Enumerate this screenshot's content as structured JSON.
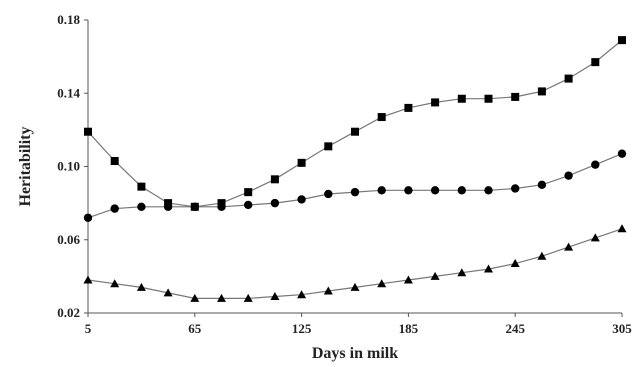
{
  "chart_data": {
    "type": "line",
    "xlabel": "Days in milk",
    "ylabel": "Heritability",
    "xlim": [
      5,
      305
    ],
    "ylim": [
      0.02,
      0.18
    ],
    "x_ticks": [
      5,
      65,
      125,
      185,
      245,
      305
    ],
    "x_tick_labels": [
      "5",
      "65",
      "125",
      "185",
      "245",
      "305"
    ],
    "y_ticks": [
      0.02,
      0.06,
      0.1,
      0.14,
      0.18
    ],
    "y_tick_labels": [
      "0.02",
      "0.06",
      "0.10",
      "0.14",
      "0.18"
    ],
    "grid": false,
    "x": [
      5,
      20,
      35,
      50,
      65,
      80,
      95,
      110,
      125,
      140,
      155,
      170,
      185,
      200,
      215,
      230,
      245,
      260,
      275,
      290,
      305
    ],
    "series": [
      {
        "marker": "square",
        "values": [
          0.119,
          0.103,
          0.089,
          0.08,
          0.078,
          0.08,
          0.086,
          0.093,
          0.102,
          0.111,
          0.119,
          0.127,
          0.132,
          0.135,
          0.137,
          0.137,
          0.138,
          0.141,
          0.148,
          0.157,
          0.169
        ]
      },
      {
        "marker": "circle",
        "values": [
          0.072,
          0.077,
          0.078,
          0.078,
          0.078,
          0.078,
          0.079,
          0.08,
          0.082,
          0.085,
          0.086,
          0.087,
          0.087,
          0.087,
          0.087,
          0.087,
          0.088,
          0.09,
          0.095,
          0.101,
          0.107
        ]
      },
      {
        "marker": "triangle",
        "values": [
          0.038,
          0.036,
          0.034,
          0.031,
          0.028,
          0.028,
          0.028,
          0.029,
          0.03,
          0.032,
          0.034,
          0.036,
          0.038,
          0.04,
          0.042,
          0.044,
          0.047,
          0.051,
          0.056,
          0.061,
          0.066
        ]
      }
    ]
  }
}
